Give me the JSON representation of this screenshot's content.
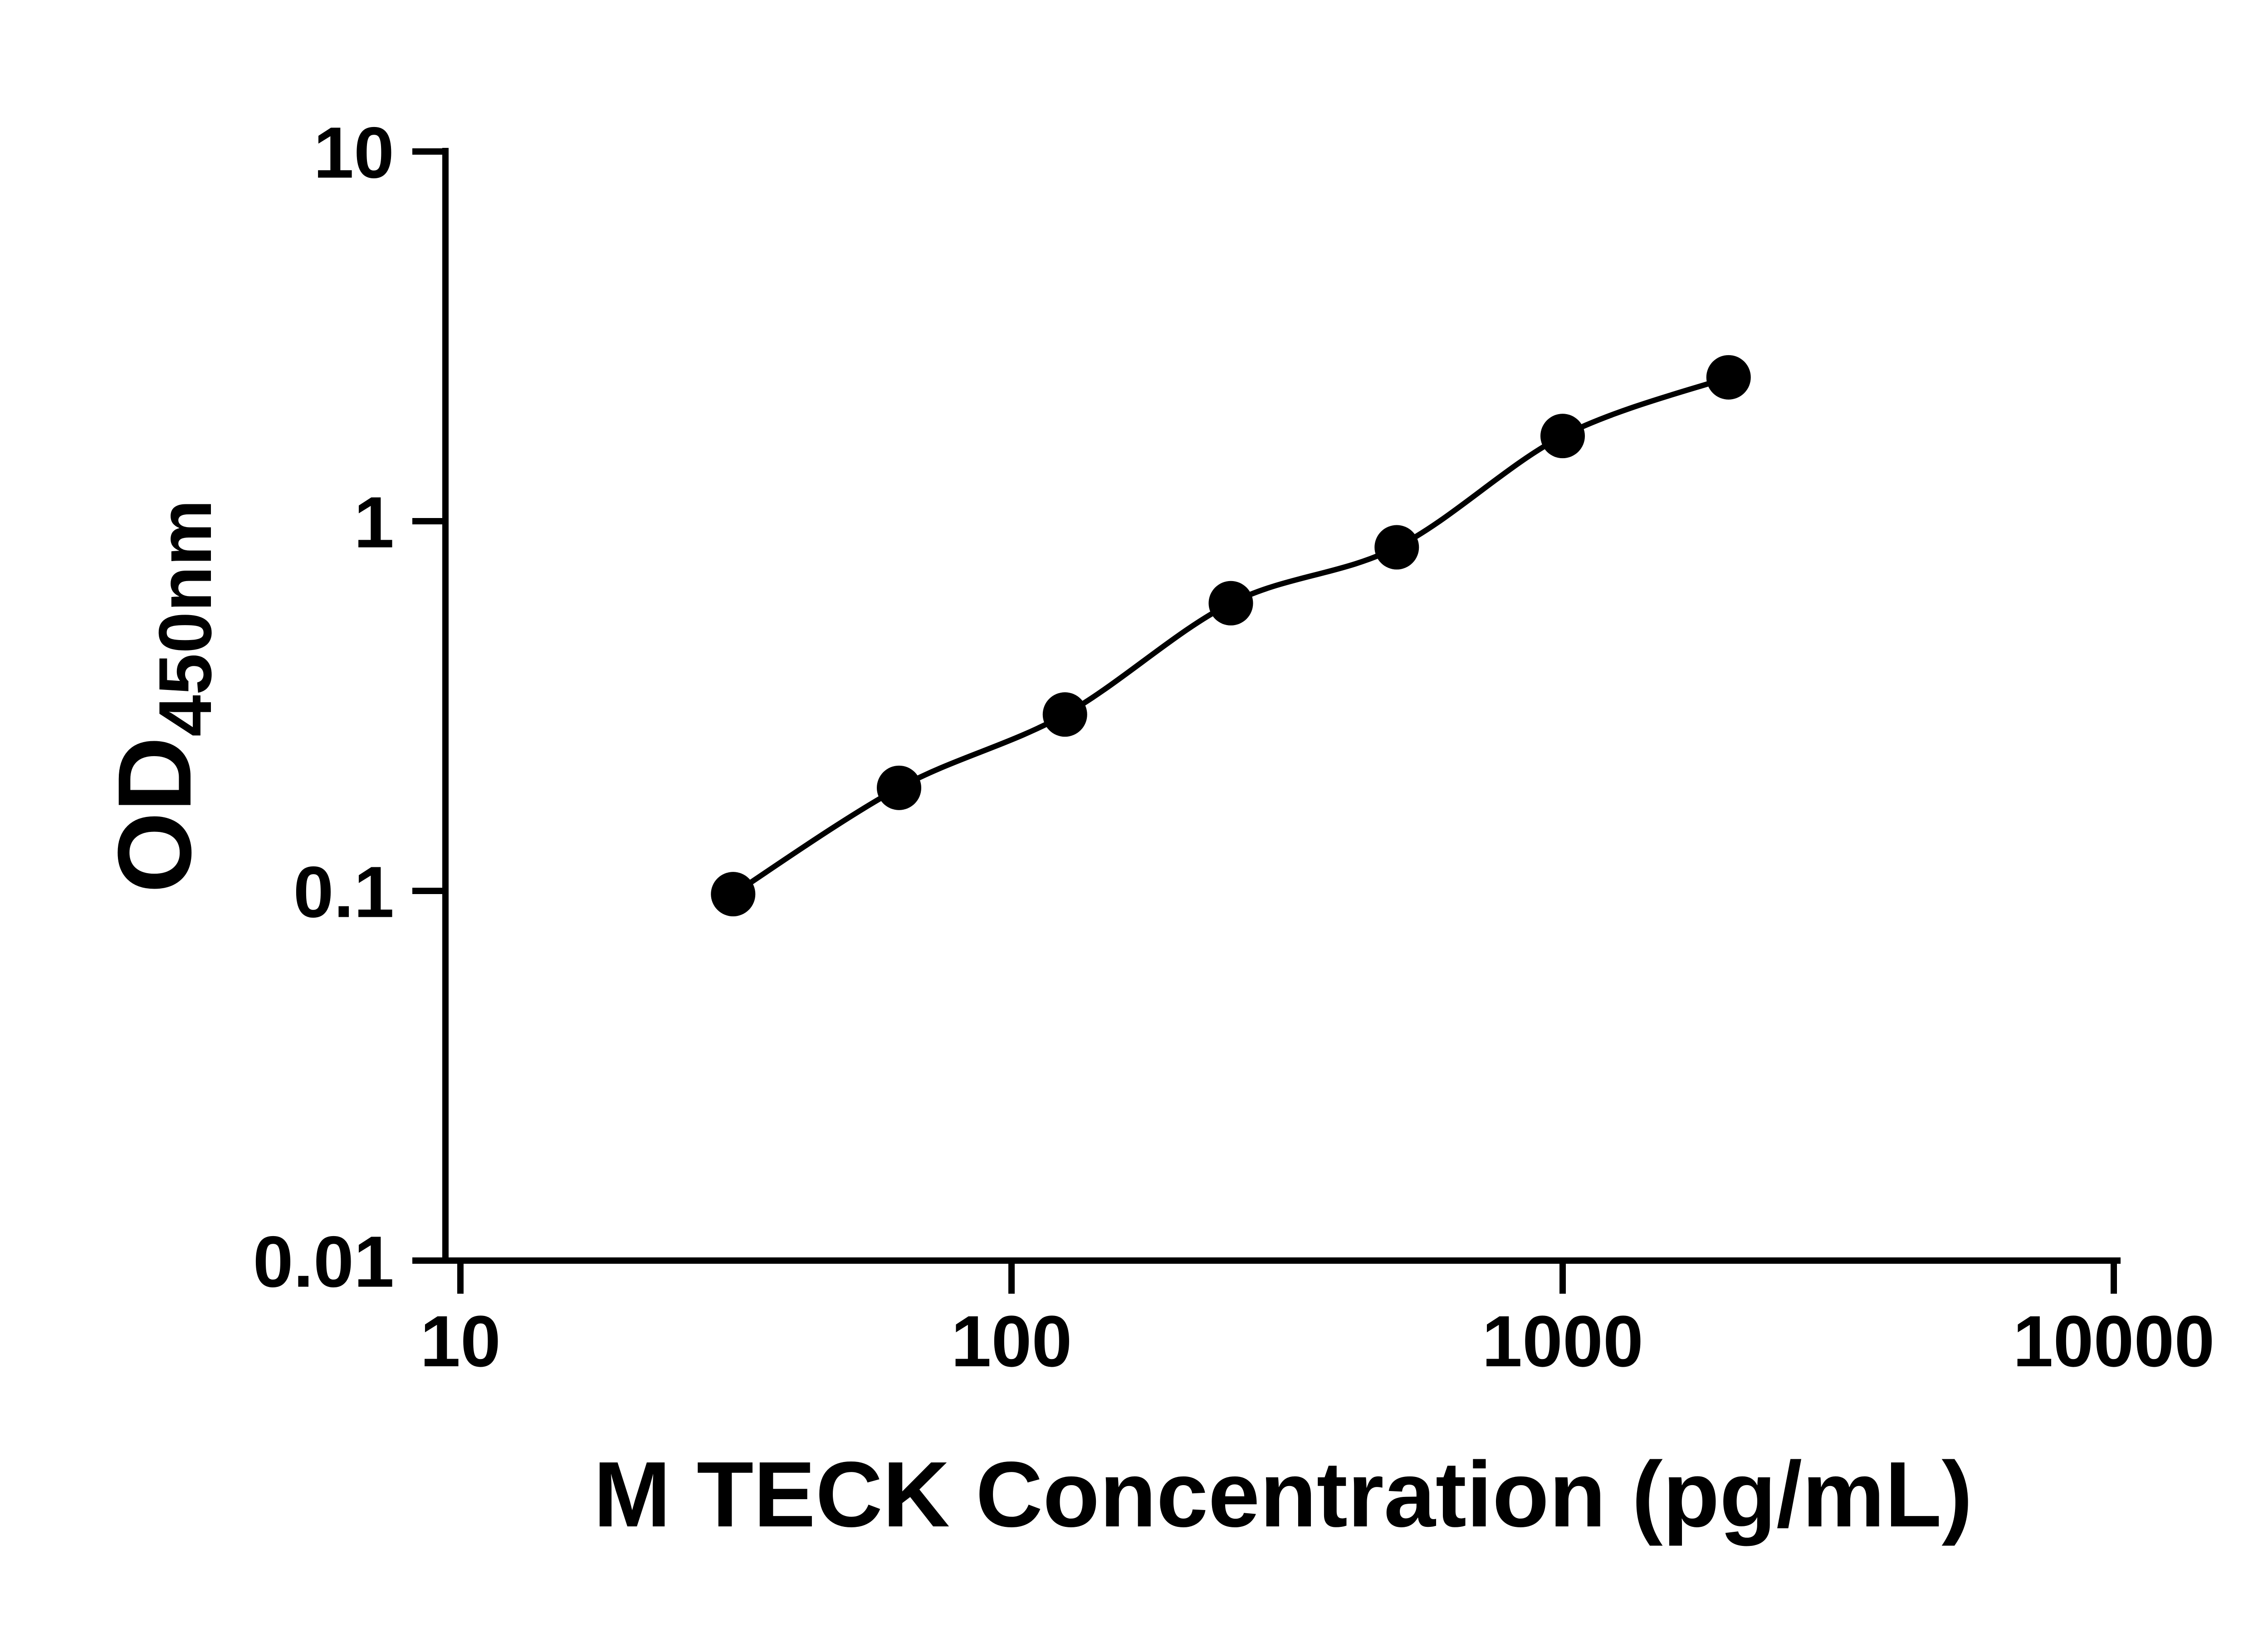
{
  "page": {
    "background_color": "#ffffff",
    "ink_color": "#000000"
  },
  "chart_data": {
    "type": "scatter",
    "title": "",
    "legend": "none",
    "grid": "off",
    "x_axis": {
      "label": "M TECK Concentration (pg/mL)",
      "scale": "log",
      "min": 10,
      "max": 10000,
      "ticks": [
        {
          "value": 10,
          "label": "10"
        },
        {
          "value": 100,
          "label": "100"
        },
        {
          "value": 1000,
          "label": "1000"
        },
        {
          "value": 10000,
          "label": "10000"
        }
      ]
    },
    "y_axis": {
      "label_main": "OD",
      "label_subscript": "450nm",
      "scale": "log",
      "min": 0.01,
      "max": 10,
      "ticks": [
        {
          "value": 10,
          "label": "10"
        },
        {
          "value": 1,
          "label": "1"
        },
        {
          "value": 0.1,
          "label": "0.1"
        },
        {
          "value": 0.01,
          "label": "0.01"
        }
      ]
    },
    "series": [
      {
        "name": "standard-curve",
        "marker": "filled-circle",
        "color": "#000000",
        "fit_line": "smooth sigmoidal fit through points",
        "points": [
          {
            "x": 31.25,
            "y": 0.098
          },
          {
            "x": 62.5,
            "y": 0.19
          },
          {
            "x": 125,
            "y": 0.3
          },
          {
            "x": 250,
            "y": 0.6
          },
          {
            "x": 500,
            "y": 0.85
          },
          {
            "x": 1000,
            "y": 1.7
          },
          {
            "x": 2000,
            "y": 2.45
          }
        ]
      }
    ]
  }
}
